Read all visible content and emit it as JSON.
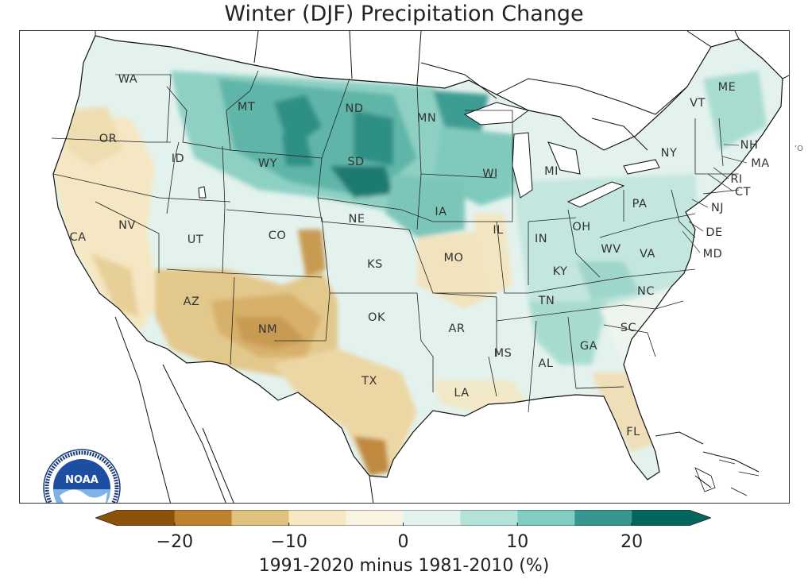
{
  "title": "Winter (DJF) Precipitation Change",
  "colorbar": {
    "label": "1991-2020 minus 1981-2010 (%)",
    "range": [
      -25,
      25
    ],
    "bounds": [
      -25,
      -20,
      -15,
      -10,
      -5,
      0,
      5,
      10,
      15,
      20,
      25
    ],
    "colors": [
      "#8c510a",
      "#bf812d",
      "#dfc27d",
      "#f6e8c3",
      "#f9f3e3",
      "#e2f2ef",
      "#b5e2d9",
      "#80cdc1",
      "#35978f",
      "#01665e"
    ],
    "ticks": [
      {
        "value": -20,
        "label": "−20"
      },
      {
        "value": -10,
        "label": "−10"
      },
      {
        "value": 0,
        "label": "0"
      },
      {
        "value": 10,
        "label": "10"
      },
      {
        "value": 20,
        "label": "20"
      }
    ]
  },
  "states": [
    "WA",
    "OR",
    "CA",
    "ID",
    "NV",
    "MT",
    "WY",
    "UT",
    "AZ",
    "CO",
    "NM",
    "ND",
    "SD",
    "NE",
    "KS",
    "OK",
    "TX",
    "MN",
    "IA",
    "MO",
    "AR",
    "LA",
    "WI",
    "IL",
    "MI",
    "IN",
    "OH",
    "KY",
    "TN",
    "MS",
    "AL",
    "GA",
    "FL",
    "SC",
    "NC",
    "VA",
    "WV",
    "PA",
    "NY",
    "VT",
    "NH",
    "ME",
    "MA",
    "RI",
    "CT",
    "NJ",
    "DE",
    "MD"
  ],
  "edge_text": "ʻO",
  "logo_text": "NOAA"
}
